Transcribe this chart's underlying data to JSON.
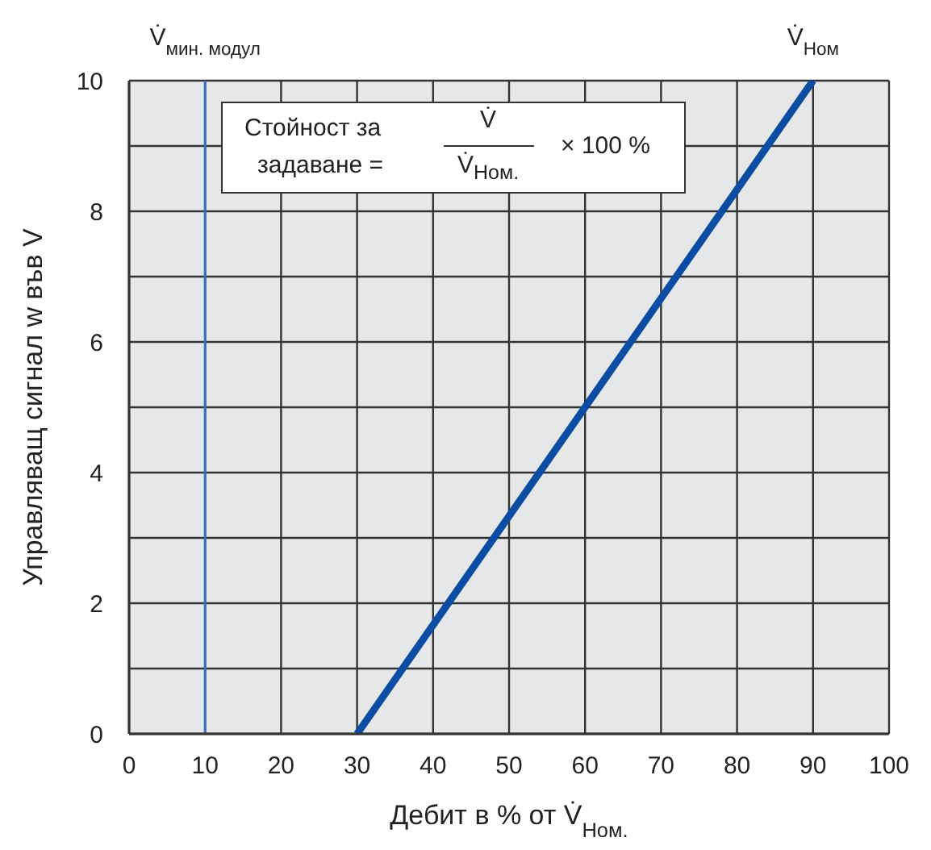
{
  "chart_data": {
    "type": "line",
    "xlabel": "Дебит в % от V̇$_{Ном.}$",
    "ylabel": "Управляващ сигнал w във V",
    "x": [
      30,
      90
    ],
    "series": [
      {
        "color": "#0b4da2",
        "values": [
          0,
          10
        ]
      }
    ],
    "xlim": [
      0,
      100
    ],
    "xticks": [
      0,
      10,
      20,
      30,
      40,
      50,
      60,
      70,
      80,
      90,
      100
    ],
    "ylim": [
      0,
      10
    ],
    "yticks": [
      0,
      {
        "value": 1,
        "label": null
      },
      2,
      {
        "value": 3,
        "label": null
      },
      4,
      {
        "value": 5,
        "label": null
      },
      6,
      {
        "value": 7,
        "label": null
      },
      8,
      {
        "value": 9,
        "label": null
      },
      10
    ],
    "grid": true,
    "marker": "none",
    "ref_lines": [
      {
        "axis": "x",
        "value": 10,
        "label": "V̇$_{мин. модул}$",
        "color": "#3a6cc0"
      }
    ],
    "annotations": [
      "Стойност за",
      "задаване =",
      "V̇",
      "V̇$_{Ном.}$",
      "× 100 %",
      {
        "text": "V̇$_{Ном}$",
        "x": 90,
        "y": 10
      }
    ]
  }
}
